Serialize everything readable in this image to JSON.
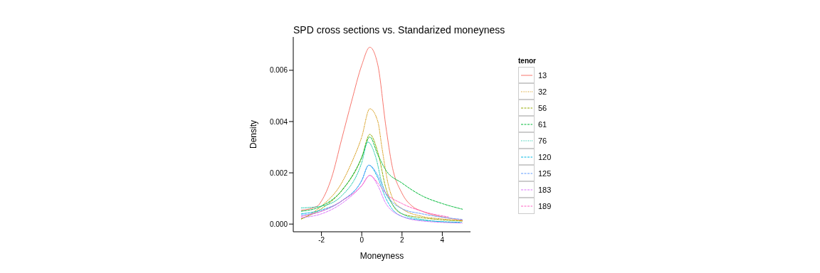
{
  "chart_data": {
    "type": "line",
    "title": "SPD cross sections vs. Standarized moneyness",
    "xlabel": "Moneyness",
    "ylabel": "Density",
    "legend_title": "tenor",
    "legend": "right",
    "grid": false,
    "xlim": [
      -3.4,
      5.4
    ],
    "ylim": [
      -0.0003,
      0.0073
    ],
    "xticks": [
      -2,
      0,
      2,
      4
    ],
    "yticks": [
      {
        "value": 0,
        "label": "0.000"
      },
      {
        "value": 0.002,
        "label": "0.002"
      },
      {
        "value": 0.004,
        "label": "0.004"
      },
      {
        "value": 0.006,
        "label": "0.006"
      }
    ],
    "series": [
      {
        "name": "13",
        "color": "#f8766d",
        "line_style": "solid",
        "x": [
          -3,
          -2.2,
          -2,
          -1.5,
          -1,
          -0.5,
          0,
          0.4,
          0.8,
          1.2,
          1.5,
          2,
          2.5,
          3,
          4,
          5
        ],
        "values": [
          0.00054,
          0.0007,
          0.0009,
          0.0018,
          0.0033,
          0.0048,
          0.0062,
          0.0069,
          0.0062,
          0.0038,
          0.0023,
          0.0012,
          0.0007,
          0.0005,
          0.00028,
          0.00015
        ]
      },
      {
        "name": "32",
        "color": "#d39200",
        "line_style": "dotted",
        "x": [
          -3,
          -2,
          -1,
          -0.5,
          0,
          0.4,
          0.8,
          1,
          1.3,
          1.6,
          2,
          3,
          4,
          5
        ],
        "values": [
          0.0002,
          0.0007,
          0.0016,
          0.0024,
          0.0034,
          0.0045,
          0.004,
          0.003,
          0.0016,
          0.0009,
          0.0006,
          0.0003,
          0.0002,
          0.00012
        ]
      },
      {
        "name": "56",
        "color": "#93aa00",
        "line_style": "dashed",
        "x": [
          -3,
          -2,
          -1,
          0,
          0.4,
          0.8,
          1.2,
          1.5,
          2,
          3,
          5
        ],
        "values": [
          0.0002,
          0.0006,
          0.0013,
          0.0026,
          0.0035,
          0.0028,
          0.0014,
          0.0008,
          0.0004,
          0.00025,
          0.00012
        ]
      },
      {
        "name": "61",
        "color": "#00ba38",
        "line_style": "dashed",
        "x": [
          -3,
          -2,
          -1,
          0,
          0.4,
          0.8,
          1.2,
          2,
          3,
          4,
          5
        ],
        "values": [
          0.0005,
          0.0007,
          0.0013,
          0.0026,
          0.0034,
          0.0027,
          0.0021,
          0.0016,
          0.0011,
          0.0008,
          0.00058
        ]
      },
      {
        "name": "76",
        "color": "#00c19f",
        "line_style": "dotted",
        "x": [
          -3,
          -2,
          -1,
          0,
          0.3,
          0.7,
          1,
          1.5,
          2,
          3,
          4.85
        ],
        "values": [
          0.00063,
          0.0007,
          0.0011,
          0.0024,
          0.0032,
          0.0026,
          0.0016,
          0.0008,
          0.0004,
          0.00018,
          5e-05
        ]
      },
      {
        "name": "120",
        "color": "#00b9e3",
        "line_style": "dashed",
        "x": [
          -3,
          -2,
          -1,
          0,
          0.35,
          0.8,
          1.2,
          1.5,
          2,
          3,
          4.95
        ],
        "values": [
          0.0004,
          0.00055,
          0.0009,
          0.0017,
          0.0023,
          0.0018,
          0.001,
          0.0006,
          0.0003,
          0.00015,
          7e-05
        ]
      },
      {
        "name": "125",
        "color": "#619cff",
        "line_style": "dashed",
        "x": [
          -3,
          -2,
          -1,
          0,
          0.35,
          0.8,
          1.2,
          2,
          3,
          5
        ],
        "values": [
          0.00035,
          0.0005,
          0.0009,
          0.0017,
          0.0023,
          0.0019,
          0.0012,
          0.0006,
          0.0004,
          0.00018
        ]
      },
      {
        "name": "183",
        "color": "#db72fb",
        "line_style": "dashed",
        "x": [
          -3,
          -2,
          -1,
          0,
          0.4,
          0.8,
          1.2,
          2,
          3,
          5
        ],
        "values": [
          0.00025,
          0.0004,
          0.0008,
          0.0015,
          0.0019,
          0.0015,
          0.0008,
          0.0003,
          0.00012,
          4e-05
        ]
      },
      {
        "name": "189",
        "color": "#ff61c3",
        "line_style": "dashed",
        "x": [
          -3,
          -2,
          -1,
          0,
          0.4,
          0.8,
          1.2,
          2,
          3,
          4.3
        ],
        "values": [
          0.0003,
          0.0005,
          0.0009,
          0.0015,
          0.0019,
          0.0016,
          0.0012,
          0.0008,
          0.0005,
          0.00028
        ]
      }
    ]
  }
}
